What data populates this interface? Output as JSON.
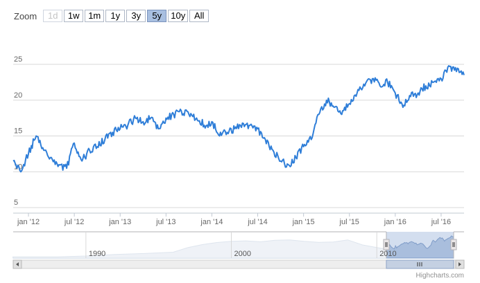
{
  "zoom": {
    "label": "Zoom",
    "buttons": [
      {
        "label": "1d",
        "state": "disabled"
      },
      {
        "label": "1w",
        "state": "normal"
      },
      {
        "label": "1m",
        "state": "normal"
      },
      {
        "label": "1y",
        "state": "normal"
      },
      {
        "label": "3y",
        "state": "normal"
      },
      {
        "label": "5y",
        "state": "selected"
      },
      {
        "label": "10y",
        "state": "normal"
      },
      {
        "label": "All",
        "state": "normal"
      }
    ]
  },
  "credits": "Highcharts.com",
  "colors": {
    "series": "#2f7ed8",
    "navigator_fill": "#b4c7e3",
    "navigator_line": "#c3cfe0",
    "grid": "#d8d8d8"
  },
  "chart_data": {
    "type": "line",
    "title": "",
    "xlabel": "",
    "ylabel": "",
    "ylim": [
      5,
      25
    ],
    "y_ticks": [
      "5",
      "10",
      "15",
      "20",
      "25"
    ],
    "x_range": [
      "2011-11",
      "2016-10"
    ],
    "x_ticks": [
      "jan '12",
      "jul '12",
      "jan '13",
      "jul '13",
      "jan '14",
      "jul '14",
      "jan '15",
      "jul '15",
      "jan '16",
      "jul '16"
    ],
    "grid": true,
    "series": [
      {
        "x": [
          "2011-11",
          "2011-12",
          "2012-01",
          "2012-02",
          "2012-03",
          "2012-04",
          "2012-05",
          "2012-06",
          "2012-07",
          "2012-08",
          "2012-09",
          "2012-10",
          "2012-11",
          "2012-12",
          "2013-01",
          "2013-02",
          "2013-03",
          "2013-04",
          "2013-05",
          "2013-06",
          "2013-07",
          "2013-08",
          "2013-09",
          "2013-10",
          "2013-11",
          "2013-12",
          "2014-01",
          "2014-02",
          "2014-03",
          "2014-04",
          "2014-05",
          "2014-06",
          "2014-07",
          "2014-08",
          "2014-09",
          "2014-10",
          "2014-11",
          "2014-12",
          "2015-01",
          "2015-02",
          "2015-03",
          "2015-04",
          "2015-05",
          "2015-06",
          "2015-07",
          "2015-08",
          "2015-09",
          "2015-10",
          "2015-11",
          "2015-12",
          "2016-01",
          "2016-02",
          "2016-03",
          "2016-04",
          "2016-05",
          "2016-06",
          "2016-07",
          "2016-08",
          "2016-09",
          "2016-10"
        ],
        "values": [
          11.5,
          10.0,
          12.5,
          15.0,
          13.0,
          12.0,
          11.0,
          10.5,
          14.0,
          11.5,
          13.0,
          13.5,
          14.5,
          15.5,
          16.0,
          16.5,
          17.5,
          17.0,
          17.5,
          16.0,
          17.5,
          18.0,
          18.5,
          18.0,
          17.5,
          16.5,
          17.0,
          15.0,
          15.5,
          16.0,
          16.8,
          16.5,
          16.0,
          14.5,
          13.0,
          11.5,
          11.0,
          12.0,
          13.5,
          14.5,
          18.0,
          20.0,
          19.0,
          18.0,
          19.5,
          21.0,
          22.0,
          23.0,
          22.0,
          22.5,
          21.0,
          19.0,
          20.5,
          21.0,
          22.0,
          22.5,
          23.0,
          24.8,
          24.0,
          23.5
        ]
      }
    ],
    "navigator": {
      "x_ticks": [
        "1990",
        "2000",
        "2010"
      ],
      "selected_range": [
        "2011-11",
        "2016-10"
      ]
    }
  }
}
